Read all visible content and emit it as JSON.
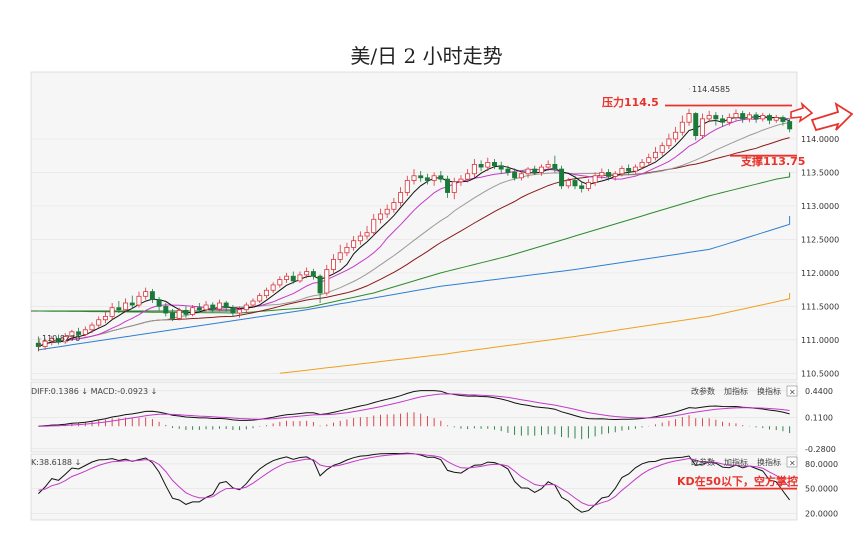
{
  "title": "美/日 2 小时走势",
  "colors": {
    "up": "#d9343a",
    "down": "#1a7a3a",
    "ma5": "#111111",
    "ma10": "#c43ac9",
    "ma20": "#9a9a9a",
    "ma30": "#8a1a1a",
    "ma60": "#2d8a2d",
    "ma120": "#2e7fd0",
    "ma250": "#f0a020",
    "flat": "#2d6a2d",
    "annotation": "#e8332c"
  },
  "chart_data": {
    "type": "candlestick",
    "y_ticks": [
      "114.0000",
      "113.5000",
      "113.0000",
      "112.5000",
      "112.0000",
      "111.5000",
      "111.0000",
      "110.5000"
    ],
    "y_values": [
      114.0,
      113.5,
      113.0,
      112.5,
      112.0,
      111.5,
      111.0,
      110.5
    ],
    "ylim": [
      110.4,
      115.0
    ],
    "high_label": "114.4585",
    "low_label": "110.8270",
    "low_value": 110.827,
    "candles": [
      [
        110.95,
        110.9,
        111.05,
        110.83
      ],
      [
        110.9,
        110.98,
        111.02,
        110.85
      ],
      [
        110.98,
        111.02,
        111.06,
        110.92
      ],
      [
        111.02,
        110.97,
        111.08,
        110.93
      ],
      [
        110.97,
        111.05,
        111.1,
        110.94
      ],
      [
        111.05,
        111.12,
        111.15,
        111.0
      ],
      [
        111.12,
        111.08,
        111.18,
        111.03
      ],
      [
        111.08,
        111.15,
        111.2,
        111.05
      ],
      [
        111.15,
        111.22,
        111.26,
        111.1
      ],
      [
        111.22,
        111.3,
        111.35,
        111.18
      ],
      [
        111.3,
        111.35,
        111.42,
        111.25
      ],
      [
        111.35,
        111.48,
        111.55,
        111.3
      ],
      [
        111.48,
        111.45,
        111.58,
        111.4
      ],
      [
        111.45,
        111.55,
        111.62,
        111.42
      ],
      [
        111.55,
        111.52,
        111.66,
        111.46
      ],
      [
        111.52,
        111.65,
        111.72,
        111.48
      ],
      [
        111.65,
        111.72,
        111.78,
        111.6
      ],
      [
        111.72,
        111.6,
        111.76,
        111.55
      ],
      [
        111.6,
        111.5,
        111.64,
        111.44
      ],
      [
        111.5,
        111.4,
        111.55,
        111.35
      ],
      [
        111.4,
        111.32,
        111.46,
        111.28
      ],
      [
        111.32,
        111.44,
        111.48,
        111.29
      ],
      [
        111.44,
        111.38,
        111.5,
        111.33
      ],
      [
        111.38,
        111.48,
        111.52,
        111.35
      ],
      [
        111.48,
        111.45,
        111.55,
        111.4
      ],
      [
        111.45,
        111.52,
        111.58,
        111.42
      ],
      [
        111.52,
        111.46,
        111.56,
        111.41
      ],
      [
        111.46,
        111.55,
        111.6,
        111.42
      ],
      [
        111.55,
        111.48,
        111.58,
        111.42
      ],
      [
        111.48,
        111.4,
        111.52,
        111.35
      ],
      [
        111.4,
        111.45,
        111.5,
        111.33
      ],
      [
        111.45,
        111.52,
        111.56,
        111.4
      ],
      [
        111.52,
        111.58,
        111.62,
        111.48
      ],
      [
        111.58,
        111.66,
        111.7,
        111.55
      ],
      [
        111.66,
        111.74,
        111.78,
        111.62
      ],
      [
        111.74,
        111.82,
        111.86,
        111.7
      ],
      [
        111.82,
        111.9,
        111.95,
        111.78
      ],
      [
        111.9,
        111.95,
        112.0,
        111.85
      ],
      [
        111.95,
        111.88,
        112.02,
        111.84
      ],
      [
        111.88,
        111.97,
        112.02,
        111.85
      ],
      [
        111.97,
        112.02,
        112.08,
        111.92
      ],
      [
        112.02,
        111.95,
        112.06,
        111.9
      ],
      [
        111.95,
        111.7,
        111.98,
        111.55
      ],
      [
        111.7,
        112.05,
        112.12,
        111.66
      ],
      [
        112.05,
        112.2,
        112.28,
        112.0
      ],
      [
        112.2,
        112.3,
        112.42,
        112.15
      ],
      [
        112.3,
        112.38,
        112.45,
        112.25
      ],
      [
        112.38,
        112.48,
        112.55,
        112.33
      ],
      [
        112.48,
        112.55,
        112.62,
        112.42
      ],
      [
        112.55,
        112.6,
        112.7,
        112.5
      ],
      [
        112.6,
        112.8,
        112.88,
        112.55
      ],
      [
        112.8,
        112.88,
        112.96,
        112.74
      ],
      [
        112.88,
        112.95,
        113.02,
        112.82
      ],
      [
        112.95,
        113.05,
        113.12,
        112.9
      ],
      [
        113.05,
        113.2,
        113.28,
        113.0
      ],
      [
        113.2,
        113.38,
        113.45,
        113.15
      ],
      [
        113.38,
        113.45,
        113.55,
        113.32
      ],
      [
        113.45,
        113.42,
        113.52,
        113.36
      ],
      [
        113.42,
        113.38,
        113.48,
        113.32
      ],
      [
        113.38,
        113.45,
        113.5,
        113.3
      ],
      [
        113.45,
        113.4,
        113.52,
        113.35
      ],
      [
        113.4,
        113.2,
        113.45,
        113.12
      ],
      [
        113.2,
        113.36,
        113.42,
        113.1
      ],
      [
        113.36,
        113.4,
        113.46,
        113.3
      ],
      [
        113.4,
        113.48,
        113.55,
        113.35
      ],
      [
        113.48,
        113.62,
        113.7,
        113.42
      ],
      [
        113.62,
        113.58,
        113.68,
        113.52
      ],
      [
        113.58,
        113.65,
        113.72,
        113.52
      ],
      [
        113.65,
        113.6,
        113.7,
        113.55
      ],
      [
        113.6,
        113.55,
        113.66,
        113.48
      ],
      [
        113.55,
        113.5,
        113.6,
        113.45
      ],
      [
        113.5,
        113.42,
        113.56,
        113.38
      ],
      [
        113.42,
        113.48,
        113.52,
        113.38
      ],
      [
        113.48,
        113.55,
        113.58,
        113.42
      ],
      [
        113.55,
        113.5,
        113.6,
        113.46
      ],
      [
        113.5,
        113.58,
        113.62,
        113.45
      ],
      [
        113.58,
        113.62,
        113.68,
        113.52
      ],
      [
        113.62,
        113.55,
        113.75,
        113.5
      ],
      [
        113.55,
        113.3,
        113.6,
        113.25
      ],
      [
        113.3,
        113.38,
        113.42,
        113.26
      ],
      [
        113.38,
        113.3,
        113.45,
        113.25
      ],
      [
        113.3,
        113.26,
        113.36,
        113.2
      ],
      [
        113.26,
        113.35,
        113.4,
        113.22
      ],
      [
        113.35,
        113.45,
        113.5,
        113.3
      ],
      [
        113.45,
        113.5,
        113.56,
        113.4
      ],
      [
        113.5,
        113.44,
        113.55,
        113.38
      ],
      [
        113.44,
        113.48,
        113.52,
        113.38
      ],
      [
        113.48,
        113.56,
        113.6,
        113.44
      ],
      [
        113.56,
        113.52,
        113.62,
        113.46
      ],
      [
        113.52,
        113.58,
        113.62,
        113.48
      ],
      [
        113.58,
        113.65,
        113.7,
        113.55
      ],
      [
        113.65,
        113.72,
        113.78,
        113.6
      ],
      [
        113.72,
        113.8,
        113.88,
        113.68
      ],
      [
        113.8,
        113.9,
        113.95,
        113.75
      ],
      [
        113.9,
        114.0,
        114.08,
        113.85
      ],
      [
        114.0,
        114.1,
        114.18,
        113.95
      ],
      [
        114.1,
        114.25,
        114.35,
        114.05
      ],
      [
        114.25,
        114.38,
        114.45,
        114.2
      ],
      [
        114.38,
        114.05,
        114.4,
        113.98
      ],
      [
        114.05,
        114.3,
        114.38,
        114.0
      ],
      [
        114.3,
        114.35,
        114.42,
        114.25
      ],
      [
        114.35,
        114.3,
        114.4,
        114.2
      ],
      [
        114.3,
        114.25,
        114.36,
        114.18
      ],
      [
        114.25,
        114.32,
        114.38,
        114.2
      ],
      [
        114.32,
        114.38,
        114.44,
        114.28
      ],
      [
        114.38,
        114.3,
        114.42,
        114.24
      ],
      [
        114.3,
        114.36,
        114.4,
        114.25
      ],
      [
        114.36,
        114.3,
        114.4,
        114.24
      ],
      [
        114.3,
        114.35,
        114.39,
        114.26
      ],
      [
        114.35,
        114.28,
        114.38,
        114.22
      ],
      [
        114.28,
        114.32,
        114.36,
        114.24
      ],
      [
        114.32,
        114.26,
        114.35,
        114.2
      ],
      [
        114.26,
        114.15,
        114.3,
        114.1
      ]
    ],
    "ma_flat_value": 111.43,
    "ma60_points": [
      [
        0,
        111.43
      ],
      [
        30,
        111.4
      ],
      [
        40,
        111.48
      ],
      [
        50,
        111.7
      ],
      [
        60,
        112.0
      ],
      [
        70,
        112.25
      ],
      [
        80,
        112.55
      ],
      [
        90,
        112.85
      ],
      [
        100,
        113.15
      ],
      [
        110,
        113.4
      ],
      [
        116,
        113.5
      ]
    ],
    "ma120_points": [
      [
        0,
        110.85
      ],
      [
        20,
        111.15
      ],
      [
        40,
        111.45
      ],
      [
        60,
        111.8
      ],
      [
        80,
        112.05
      ],
      [
        100,
        112.35
      ],
      [
        116,
        112.85
      ]
    ],
    "ma250_start_index": 36,
    "ma250_points": [
      [
        36,
        110.5
      ],
      [
        60,
        110.78
      ],
      [
        80,
        111.05
      ],
      [
        100,
        111.35
      ],
      [
        116,
        111.7
      ]
    ],
    "macd_header": "DIFF:0.1386 ↓ MACD:-0.0923 ↓",
    "macd_ticks": [
      "0.4400",
      "0.1100",
      "-0.2800"
    ],
    "macd_values": [
      0.44,
      0.11,
      -0.28
    ],
    "macd_ylim": [
      -0.32,
      0.55
    ],
    "kd_header": "K:38.6188 ↓",
    "kd_ticks": [
      "80.0000",
      "50.0000",
      "20.0000"
    ],
    "kd_values": [
      80,
      50,
      20
    ],
    "kd_ylim": [
      12,
      92
    ],
    "panel_buttons": [
      "改参数",
      "加指标",
      "换指标"
    ],
    "close_glyph": "×",
    "annotations": {
      "resistance_label": "压力114.5",
      "resistance_value": 114.5,
      "support_label": "支撑113.75",
      "support_value": 113.75,
      "kd_note": "KD在50以下，空方掌控",
      "kd_line_value": 50
    }
  }
}
